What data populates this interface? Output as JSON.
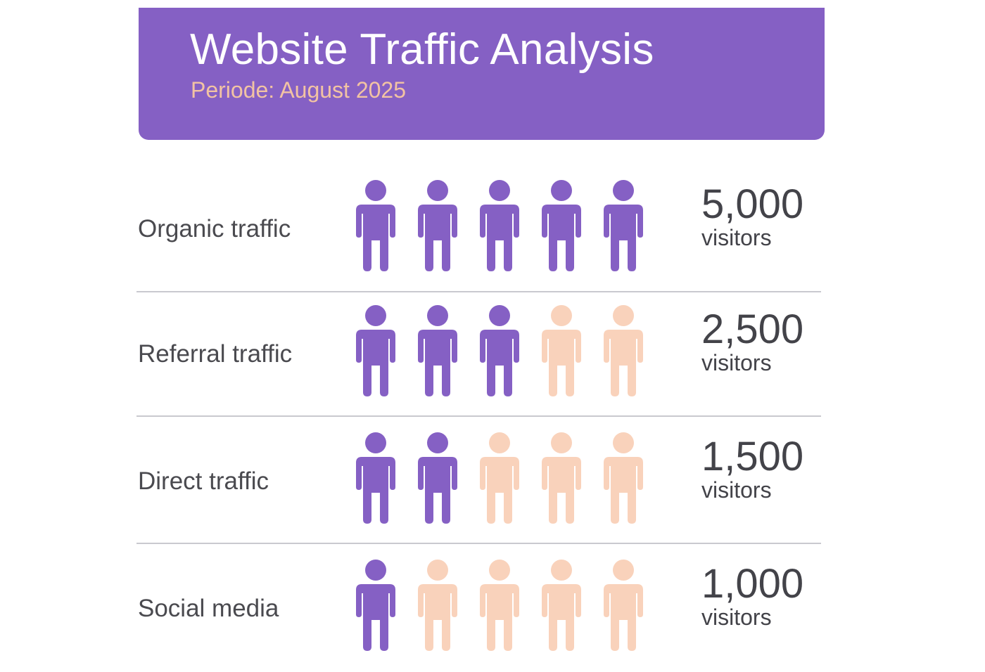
{
  "header": {
    "title": "Website Traffic Analysis",
    "subtitle": "Periode: August 2025",
    "background_color": "#8560c4",
    "subtitle_color": "#f2c3a3"
  },
  "colors": {
    "filled": "#8560c4",
    "empty": "#f9d2bb"
  },
  "icon_name": "person-icon",
  "chart_data": {
    "type": "pictograph",
    "icons_per_row": 5,
    "unit_label": "visitors",
    "categories": [
      "Organic traffic",
      "Referral traffic",
      "Direct traffic",
      "Social media"
    ],
    "values": [
      5000,
      2500,
      1500,
      1000
    ],
    "value_labels": [
      "5,000",
      "2,500",
      "1,500",
      "1,000"
    ],
    "filled_icons": [
      5,
      3,
      2,
      1
    ]
  }
}
